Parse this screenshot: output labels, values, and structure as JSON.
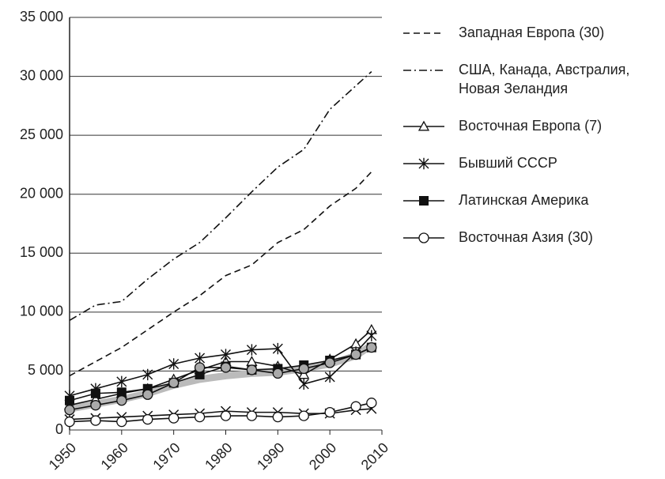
{
  "chart_data": {
    "type": "line",
    "x": [
      1950,
      1955,
      1960,
      1965,
      1970,
      1975,
      1980,
      1985,
      1990,
      1995,
      2000,
      2005,
      2008
    ],
    "xlim": [
      1950,
      2010
    ],
    "xticks": [
      1950,
      1960,
      1970,
      1980,
      1990,
      2000,
      2010
    ],
    "ylim": [
      0,
      35000
    ],
    "yticks": [
      0,
      {
        "value": 5000,
        "label": "5 000"
      },
      {
        "value": 10000,
        "label": "10 000"
      },
      {
        "value": 15000,
        "label": "15 000"
      },
      {
        "value": 20000,
        "label": "20 000"
      },
      {
        "value": 25000,
        "label": "25 000"
      },
      {
        "value": 30000,
        "label": "30 000"
      },
      {
        "value": 35000,
        "label": "35 000"
      }
    ],
    "grid": true,
    "legend": "right",
    "series": [
      {
        "color": "#bbbbbb",
        "width": 9,
        "marker": "none",
        "values": [
          1800,
          2200,
          2600,
          3100,
          3800,
          4300,
          4600,
          4800,
          4900,
          5200,
          5600,
          6300,
          7200
        ]
      },
      {
        "name": "Западная Европа (30)",
        "color": "#111111",
        "dash": "8 5",
        "marker": "none",
        "values": [
          4600,
          5800,
          7000,
          8500,
          10000,
          11400,
          13100,
          14000,
          15900,
          17000,
          19000,
          20500,
          21900
        ]
      },
      {
        "name": "США, Канада, Австралия,\nНовая Зеландия",
        "color": "#111111",
        "dash": "10 4 2 4",
        "marker": "none",
        "values": [
          9300,
          10600,
          10900,
          12800,
          14500,
          15900,
          18000,
          20200,
          22300,
          23800,
          27200,
          29200,
          30400
        ]
      },
      {
        "name": "Восточная Европа (7)",
        "color": "#111111",
        "marker": "triangle",
        "values": [
          2100,
          2600,
          3100,
          3500,
          4300,
          5100,
          5800,
          5800,
          5400,
          4700,
          6000,
          7300,
          8500
        ]
      },
      {
        "name": "Бывший СССР",
        "color": "#111111",
        "marker": "star",
        "values": [
          2900,
          3500,
          4100,
          4700,
          5600,
          6100,
          6400,
          6800,
          6900,
          3900,
          4500,
          6600,
          8000
        ]
      },
      {
        "name": "Латинская Америка",
        "color": "#111111",
        "marker": "square",
        "values": [
          2500,
          3100,
          3200,
          3500,
          4000,
          4700,
          5400,
          5100,
          5200,
          5500,
          5900,
          6400,
          7000
        ]
      },
      {
        "color": "#111111",
        "marker": "graycircle",
        "values": [
          1700,
          2100,
          2500,
          3000,
          4000,
          5300,
          5300,
          5100,
          4800,
          5200,
          5700,
          6400,
          7000
        ]
      },
      {
        "color": "#111111",
        "marker": "cross",
        "values": [
          900,
          1000,
          1100,
          1200,
          1300,
          1400,
          1600,
          1500,
          1500,
          1400,
          1400,
          1700,
          1800
        ]
      },
      {
        "name": "Восточная Азия (30)",
        "color": "#111111",
        "marker": "circle",
        "values": [
          700,
          800,
          700,
          900,
          1000,
          1100,
          1200,
          1200,
          1100,
          1200,
          1500,
          2000,
          2300
        ]
      }
    ]
  }
}
